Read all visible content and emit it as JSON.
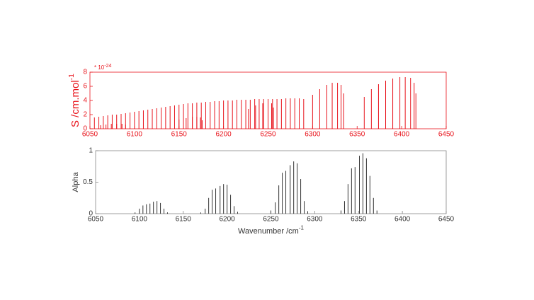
{
  "chart_data": [
    {
      "type": "stick",
      "color": "#e8141c",
      "y_label": {
        "text": "S /cm.mol",
        "superscript": "-1"
      },
      "y_multiplier": {
        "text": "* 10",
        "superscript": "-24"
      },
      "xlim": [
        6050,
        6450
      ],
      "xticks": [
        6050,
        6100,
        6150,
        6200,
        6250,
        6300,
        6350,
        6400,
        6450
      ],
      "ylim": [
        0,
        8
      ],
      "yticks": [
        0,
        2,
        4,
        6,
        8
      ],
      "series": [
        {
          "x": [
            6055,
            6060,
            6065,
            6070,
            6075,
            6080,
            6085,
            6090,
            6095,
            6100,
            6105,
            6110,
            6115,
            6120,
            6125,
            6130,
            6135,
            6140,
            6145,
            6150,
            6155,
            6160,
            6165,
            6170,
            6175,
            6180,
            6185,
            6190,
            6195,
            6200,
            6205,
            6210,
            6215,
            6220,
            6225,
            6230,
            6235,
            6240,
            6245,
            6250,
            6255,
            6260,
            6265,
            6270,
            6275,
            6280,
            6285,
            6290
          ],
          "values": [
            1.6,
            1.7,
            1.8,
            1.9,
            2.0,
            2.0,
            2.1,
            2.2,
            2.3,
            2.4,
            2.5,
            2.6,
            2.7,
            2.8,
            2.9,
            3.0,
            3.1,
            3.2,
            3.3,
            3.4,
            3.5,
            3.6,
            3.6,
            3.7,
            3.7,
            3.8,
            3.8,
            3.9,
            3.9,
            4.0,
            4.0,
            4.0,
            4.1,
            4.1,
            4.1,
            4.1,
            4.2,
            4.2,
            4.2,
            4.2,
            4.2,
            4.2,
            4.2,
            4.3,
            4.3,
            4.3,
            4.3,
            4.2
          ]
        },
        {
          "x": [
            6062,
            6068,
            6074,
            6080,
            6086,
            6090,
            6150,
            6158,
            6165,
            6170,
            6174,
            6176,
            6228,
            6236,
            6244,
            6250,
            6254,
            6256,
            6300,
            6308,
            6316,
            6322,
            6328,
            6332,
            6335,
            6358,
            6366,
            6374,
            6382,
            6390,
            6398,
            6404,
            6410,
            6414,
            6416
          ],
          "values": [
            0.5,
            0.6,
            0.7,
            0.7,
            0.7,
            0.6,
            1.3,
            1.5,
            1.7,
            1.7,
            1.6,
            1.2,
            2.8,
            3.3,
            3.6,
            3.7,
            3.6,
            3.0,
            4.8,
            5.6,
            6.2,
            6.5,
            6.5,
            6.2,
            5.0,
            4.5,
            5.6,
            6.3,
            6.8,
            7.1,
            7.3,
            7.3,
            7.2,
            6.5,
            5.0
          ]
        }
      ]
    },
    {
      "type": "stick",
      "color": "#333333",
      "y_label": {
        "text": "Alpha"
      },
      "x_label": {
        "text": "Wavenumber /cm",
        "superscript": "-1"
      },
      "xlim": [
        6050,
        6450
      ],
      "xticks": [
        6050,
        6100,
        6150,
        6200,
        6250,
        6300,
        6350,
        6400,
        6450
      ],
      "ylim": [
        0,
        1
      ],
      "yticks": [
        0,
        0.5,
        1
      ],
      "series": [
        {
          "x": [
            6095,
            6100,
            6104,
            6108,
            6112,
            6116,
            6120,
            6124,
            6128,
            6132,
            6170,
            6175,
            6179,
            6183,
            6187,
            6192,
            6196,
            6200,
            6204,
            6208,
            6212,
            6250,
            6255,
            6259,
            6263,
            6267,
            6272,
            6276,
            6280,
            6284,
            6288,
            6292,
            6330,
            6334,
            6338,
            6342,
            6346,
            6351,
            6355,
            6359,
            6363,
            6367,
            6371
          ],
          "values": [
            0.02,
            0.08,
            0.13,
            0.15,
            0.16,
            0.19,
            0.2,
            0.17,
            0.08,
            0.02,
            0.02,
            0.08,
            0.25,
            0.38,
            0.4,
            0.44,
            0.47,
            0.46,
            0.3,
            0.12,
            0.03,
            0.05,
            0.18,
            0.45,
            0.65,
            0.68,
            0.77,
            0.83,
            0.8,
            0.55,
            0.2,
            0.04,
            0.05,
            0.2,
            0.47,
            0.72,
            0.74,
            0.92,
            0.96,
            0.88,
            0.6,
            0.25,
            0.05
          ]
        }
      ]
    }
  ]
}
